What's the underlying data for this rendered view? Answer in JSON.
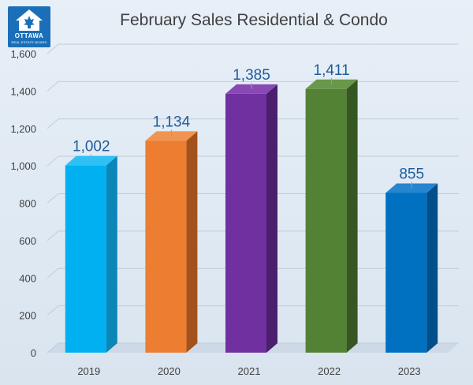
{
  "logo": {
    "word": "OTTAWA",
    "sub": "REAL ESTATE BOARD"
  },
  "chart_data": {
    "type": "bar",
    "title": "February Sales Residential & Condo",
    "xlabel": "",
    "ylabel": "",
    "categories": [
      "2019",
      "2020",
      "2021",
      "2022",
      "2023"
    ],
    "values": [
      1002,
      1134,
      1385,
      1411,
      855
    ],
    "data_labels": [
      "1,002",
      "1,134",
      "1,385",
      "1,411",
      "855"
    ],
    "ylim": [
      0,
      1600
    ],
    "yticks": [
      0,
      200,
      400,
      600,
      800,
      1000,
      1200,
      1400,
      1600
    ],
    "ytick_labels": [
      "0",
      "200",
      "400",
      "600",
      "800",
      "1,000",
      "1,200",
      "1,400",
      "1,600"
    ],
    "grid": true,
    "colors": [
      "#00b0f0",
      "#ed7d31",
      "#7030a0",
      "#548235",
      "#0070c0"
    ],
    "side_colors": [
      "#0a86b8",
      "#a4521b",
      "#4b1f6d",
      "#375722",
      "#004f8a"
    ],
    "top_colors": [
      "#2fc1f6",
      "#f19453",
      "#8849b3",
      "#69984a",
      "#2585cf"
    ],
    "label_color": "#1f5b9a",
    "title_color": "#404040"
  }
}
